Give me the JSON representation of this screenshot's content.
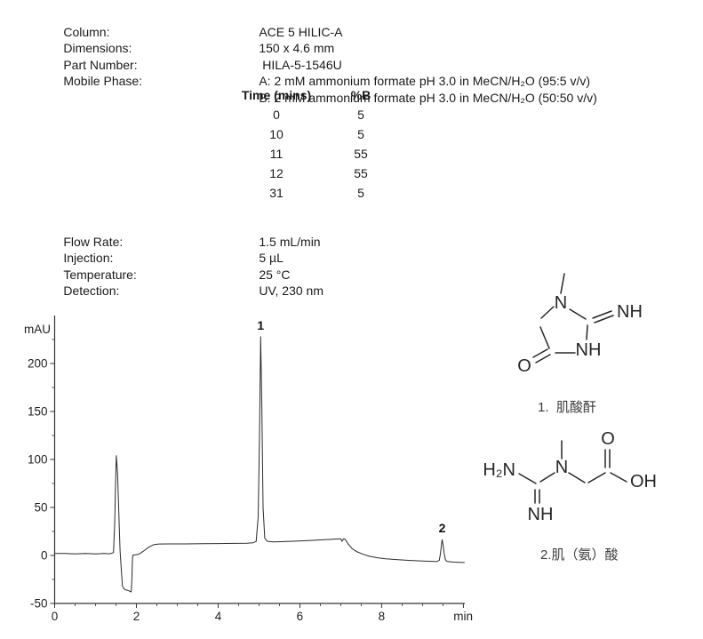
{
  "params_top": {
    "rows": [
      {
        "label": "Column:",
        "value": "ACE 5 HILIC-A"
      },
      {
        "label": "Dimensions:",
        "value": "150 x 4.6 mm"
      },
      {
        "label": "Part Number:",
        "value": " HILA-5-1546U"
      },
      {
        "label": "Mobile Phase:",
        "value": "A: 2 mM ammonium formate pH 3.0 in MeCN/H₂O (95:5 v/v)"
      },
      {
        "label": "",
        "value": "B: 2 mM ammonium formate pH 3.0 in MeCN/H₂O (50:50 v/v)"
      }
    ]
  },
  "gradient_table": {
    "headers": [
      "Time (mins)",
      "%B"
    ],
    "rows": [
      [
        "0",
        "5"
      ],
      [
        "10",
        "5"
      ],
      [
        "11",
        "55"
      ],
      [
        "12",
        "55"
      ],
      [
        "31",
        "5"
      ]
    ]
  },
  "params_bottom": {
    "rows": [
      {
        "label": "Flow Rate:",
        "value": "1.5 mL/min"
      },
      {
        "label": "Injection:",
        "value": "5 µL"
      },
      {
        "label": "Temperature:",
        "value": "25 °C"
      },
      {
        "label": "Detection:",
        "value": "UV, 230 nm"
      }
    ]
  },
  "chart_data": {
    "type": "line",
    "title": "",
    "xlabel": "min",
    "ylabel": "mAU",
    "xlim": [
      0,
      10.035
    ],
    "ylim": [
      -50,
      250
    ],
    "grid": false,
    "x_major_ticks": [
      0,
      2,
      4,
      6,
      8,
      10
    ],
    "x_labeled_ticks": [
      "0",
      "2",
      "4",
      "6",
      "8"
    ],
    "x_minor_step": 0.5,
    "y_major_ticks": [
      -50,
      0,
      50,
      100,
      150,
      200
    ],
    "y_minor_step": 25,
    "line_color": "#2a2a2a",
    "peaks": [
      {
        "label": "1",
        "t": 5.04,
        "mAU": 228
      },
      {
        "label": "2",
        "t": 9.48,
        "mAU": 16.5
      }
    ],
    "trace": [
      [
        0,
        2
      ],
      [
        0.25,
        2
      ],
      [
        0.5,
        1.6
      ],
      [
        0.75,
        2.1
      ],
      [
        1.0,
        1.7
      ],
      [
        1.2,
        2
      ],
      [
        1.35,
        1.8
      ],
      [
        1.44,
        3
      ],
      [
        1.47,
        35
      ],
      [
        1.49,
        75
      ],
      [
        1.51,
        104
      ],
      [
        1.54,
        85
      ],
      [
        1.58,
        30
      ],
      [
        1.6,
        5
      ],
      [
        1.63,
        -15
      ],
      [
        1.66,
        -32
      ],
      [
        1.7,
        -35
      ],
      [
        1.75,
        -36
      ],
      [
        1.8,
        -36.5
      ],
      [
        1.85,
        -37.5
      ],
      [
        1.875,
        -38
      ],
      [
        1.89,
        -25
      ],
      [
        1.9,
        -8
      ],
      [
        1.91,
        0
      ],
      [
        1.95,
        0.6
      ],
      [
        2.0,
        0.8
      ],
      [
        2.05,
        1.2
      ],
      [
        2.12,
        3
      ],
      [
        2.2,
        5.5
      ],
      [
        2.3,
        8.6
      ],
      [
        2.42,
        11.2
      ],
      [
        2.55,
        11.9
      ],
      [
        2.8,
        12
      ],
      [
        3.2,
        12
      ],
      [
        3.6,
        12.2
      ],
      [
        4.0,
        12.4
      ],
      [
        4.4,
        12.6
      ],
      [
        4.7,
        12.8
      ],
      [
        4.85,
        13.2
      ],
      [
        4.93,
        14.5
      ],
      [
        4.98,
        40
      ],
      [
        5.01,
        120
      ],
      [
        5.04,
        228
      ],
      [
        5.07,
        150
      ],
      [
        5.1,
        50
      ],
      [
        5.14,
        18
      ],
      [
        5.2,
        14.8
      ],
      [
        5.35,
        14.2
      ],
      [
        5.6,
        14.4
      ],
      [
        5.9,
        14.9
      ],
      [
        6.2,
        15.5
      ],
      [
        6.5,
        16.2
      ],
      [
        6.8,
        16.9
      ],
      [
        6.95,
        17.2
      ],
      [
        7.0,
        17.3
      ],
      [
        7.03,
        14.8
      ],
      [
        7.07,
        17.4
      ],
      [
        7.11,
        16.8
      ],
      [
        7.18,
        12
      ],
      [
        7.28,
        7
      ],
      [
        7.4,
        3.8
      ],
      [
        7.55,
        1.2
      ],
      [
        7.7,
        -0.8
      ],
      [
        7.9,
        -2.4
      ],
      [
        8.1,
        -3.4
      ],
      [
        8.4,
        -4.4
      ],
      [
        8.7,
        -5.2
      ],
      [
        9.0,
        -5.8
      ],
      [
        9.2,
        -6.1
      ],
      [
        9.35,
        -6.4
      ],
      [
        9.41,
        -5
      ],
      [
        9.44,
        2
      ],
      [
        9.465,
        12
      ],
      [
        9.48,
        16.5
      ],
      [
        9.5,
        12
      ],
      [
        9.53,
        2
      ],
      [
        9.56,
        -4.5
      ],
      [
        9.6,
        -6.3
      ],
      [
        9.75,
        -6.9
      ],
      [
        9.9,
        -7.2
      ],
      [
        10.03,
        -7.4
      ]
    ]
  },
  "structures": {
    "s1": {
      "caption": "1.  肌酸酐",
      "atoms": {
        "n": "N",
        "nh_imine": "NH",
        "nh_ring": "NH",
        "o": "O"
      }
    },
    "s2": {
      "caption": "2.肌（氨）酸",
      "atoms": {
        "h2n": "H₂N",
        "n": "N",
        "nh": "NH",
        "o": "O",
        "oh": "OH"
      }
    }
  }
}
